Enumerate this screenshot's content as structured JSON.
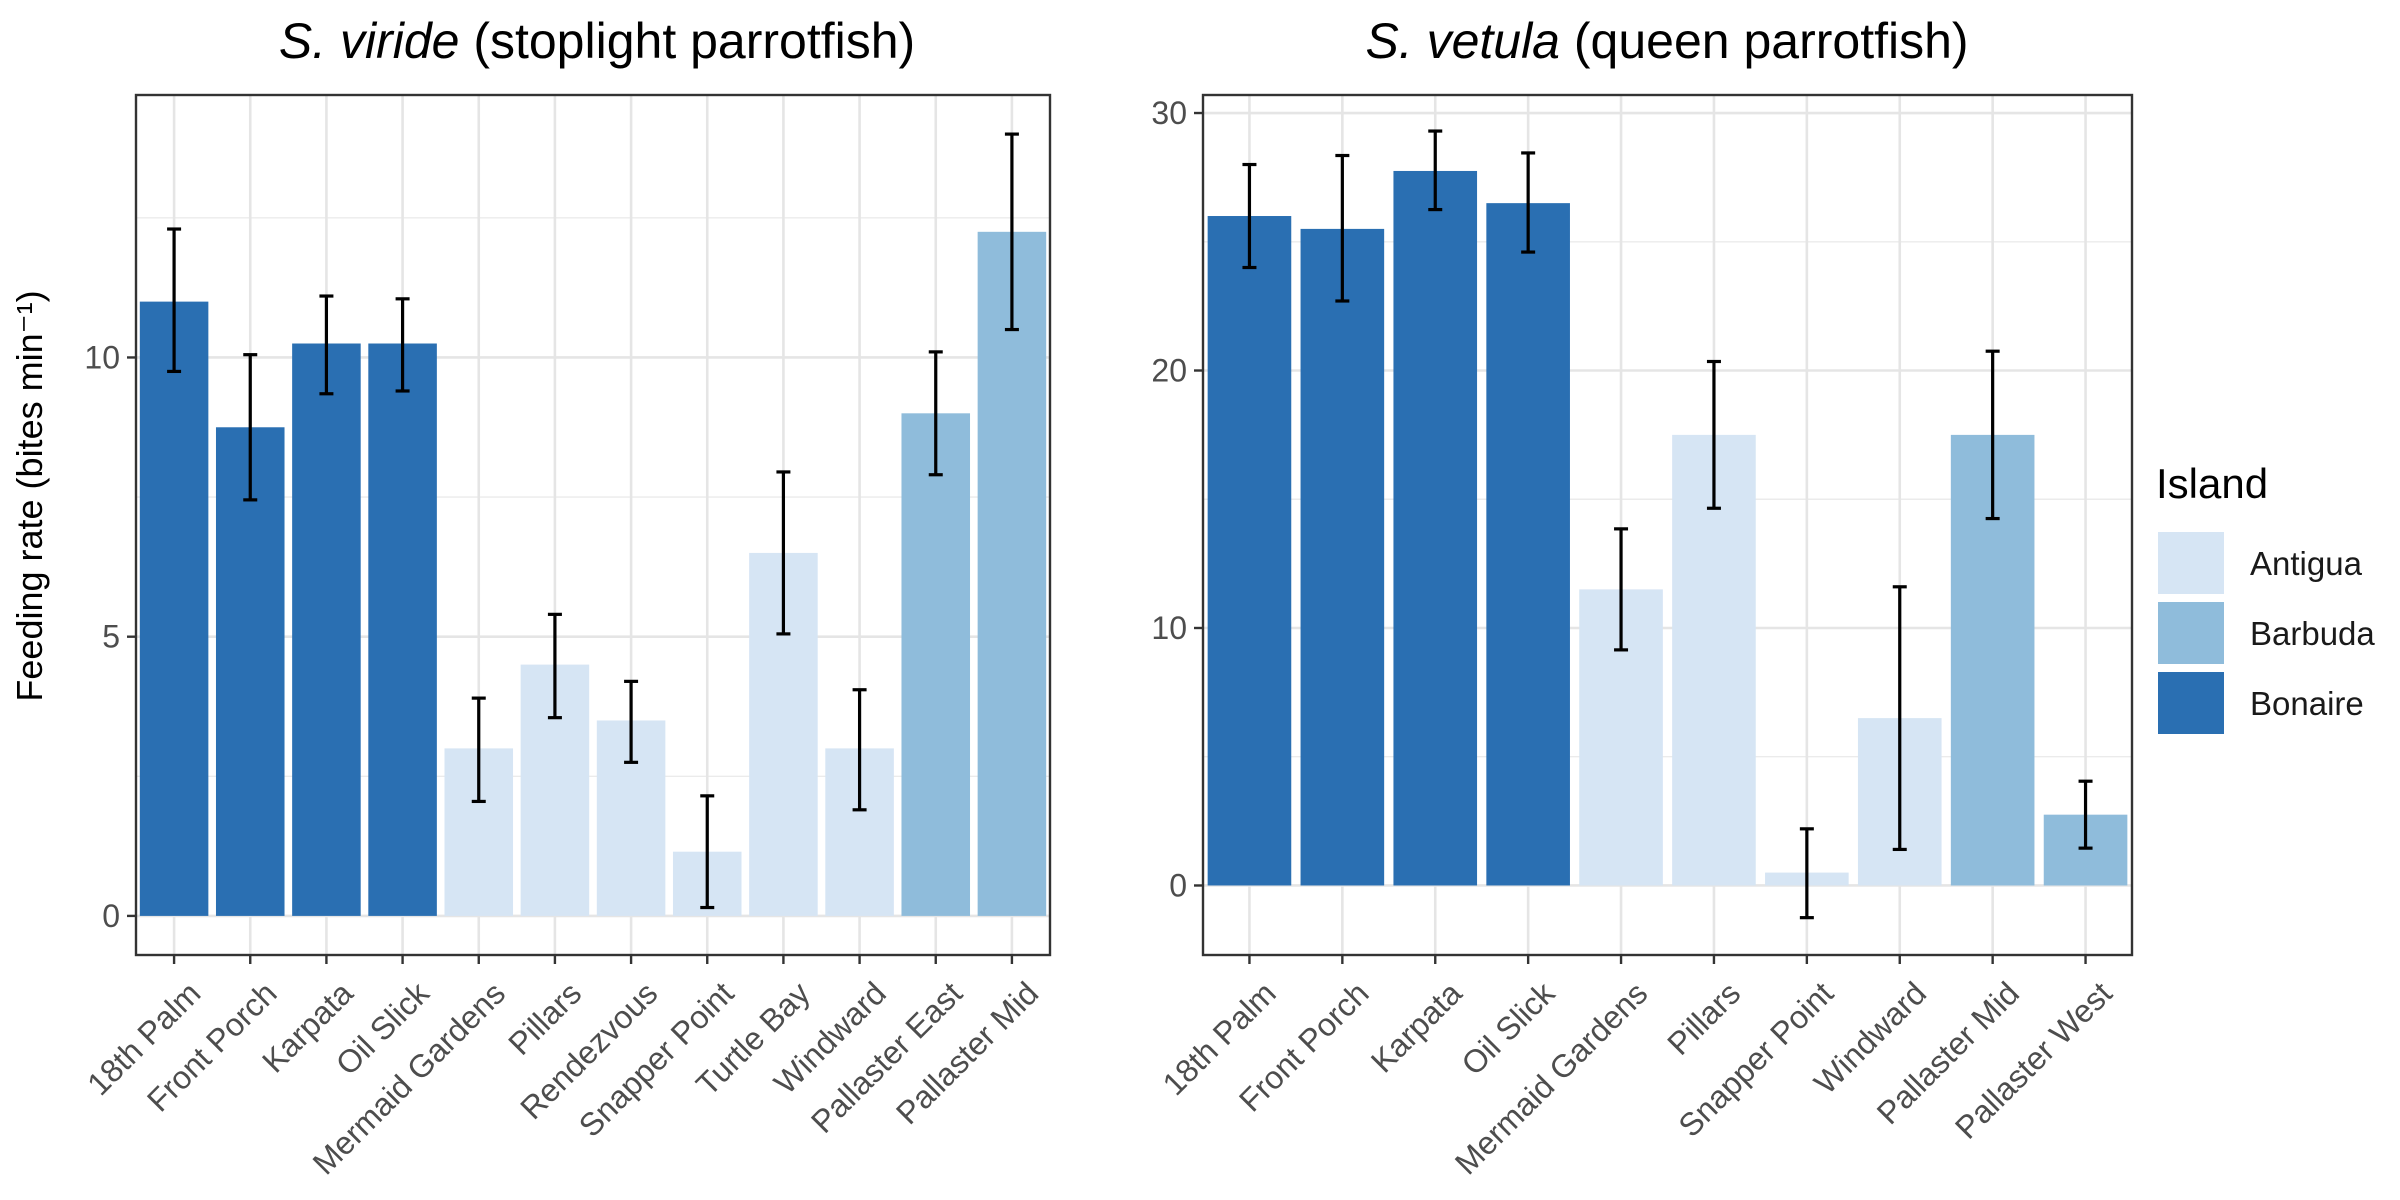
{
  "ylabel": "Feeding rate (bites min⁻¹)",
  "legend": {
    "title": "Island",
    "items": [
      {
        "label": "Antigua",
        "color": "#d6e5f4"
      },
      {
        "label": "Barbuda",
        "color": "#8fbcdb"
      },
      {
        "label": "Bonaire",
        "color": "#2a6fb2"
      }
    ]
  },
  "chart_data": [
    {
      "type": "bar",
      "title_italic": "S. viride",
      "title_rest": " (stoplight parrotfish)",
      "title": "S. viride (stoplight parrotfish)",
      "ylabel": "Feeding rate (bites min⁻¹)",
      "xlabel": "",
      "ylim": [
        -0.7,
        14.7
      ],
      "yticks": [
        0,
        5,
        10
      ],
      "grid": true,
      "categories": [
        "18th Palm",
        "Front Porch",
        "Karpata",
        "Oil Slick",
        "Mermaid Gardens",
        "Pillars",
        "Rendezvous",
        "Snapper Point",
        "Turtle Bay",
        "Windward",
        "Pallaster East",
        "Pallaster Mid"
      ],
      "island": [
        "Bonaire",
        "Bonaire",
        "Bonaire",
        "Bonaire",
        "Antigua",
        "Antigua",
        "Antigua",
        "Antigua",
        "Antigua",
        "Antigua",
        "Barbuda",
        "Barbuda"
      ],
      "values": [
        11.0,
        8.75,
        10.25,
        10.25,
        3.0,
        4.5,
        3.5,
        1.15,
        6.5,
        3.0,
        9.0,
        12.25
      ],
      "error_low": [
        9.75,
        7.45,
        9.35,
        9.4,
        2.05,
        3.55,
        2.75,
        0.15,
        5.05,
        1.9,
        7.9,
        10.5
      ],
      "error_high": [
        12.3,
        10.05,
        11.1,
        11.05,
        3.9,
        5.4,
        4.2,
        2.15,
        7.95,
        4.05,
        10.1,
        14.0
      ]
    },
    {
      "type": "bar",
      "title_italic": "S. vetula",
      "title_rest": " (queen parrotfish)",
      "title": "S. vetula (queen parrotfish)",
      "ylabel": "",
      "xlabel": "",
      "ylim": [
        -2.7,
        30.7
      ],
      "yticks": [
        0,
        10,
        20,
        30
      ],
      "grid": true,
      "categories": [
        "18th Palm",
        "Front Porch",
        "Karpata",
        "Oil Slick",
        "Mermaid Gardens",
        "Pillars",
        "Snapper Point",
        "Windward",
        "Pallaster Mid",
        "Pallaster West"
      ],
      "island": [
        "Bonaire",
        "Bonaire",
        "Bonaire",
        "Bonaire",
        "Antigua",
        "Antigua",
        "Antigua",
        "Antigua",
        "Barbuda",
        "Barbuda"
      ],
      "values": [
        26.0,
        25.5,
        27.75,
        26.5,
        11.5,
        17.5,
        0.5,
        6.5,
        17.5,
        2.75
      ],
      "error_low": [
        24.0,
        22.7,
        26.25,
        24.6,
        9.15,
        14.65,
        -1.25,
        1.4,
        14.25,
        1.45
      ],
      "error_high": [
        28.0,
        28.35,
        29.3,
        28.45,
        13.85,
        20.35,
        2.2,
        11.6,
        20.75,
        4.05
      ]
    }
  ]
}
